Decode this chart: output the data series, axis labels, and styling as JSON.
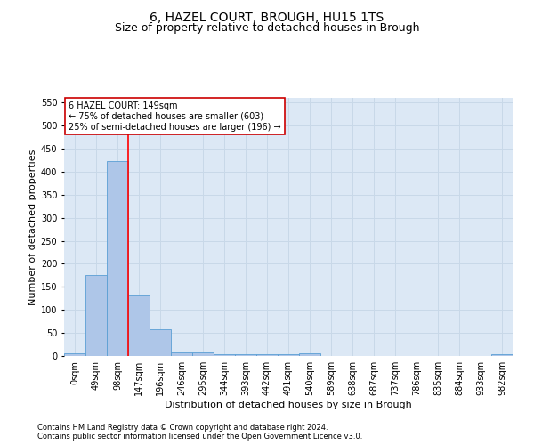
{
  "title": "6, HAZEL COURT, BROUGH, HU15 1TS",
  "subtitle": "Size of property relative to detached houses in Brough",
  "xlabel": "Distribution of detached houses by size in Brough",
  "ylabel": "Number of detached properties",
  "bin_labels": [
    "0sqm",
    "49sqm",
    "98sqm",
    "147sqm",
    "196sqm",
    "246sqm",
    "295sqm",
    "344sqm",
    "393sqm",
    "442sqm",
    "491sqm",
    "540sqm",
    "589sqm",
    "638sqm",
    "687sqm",
    "737sqm",
    "786sqm",
    "835sqm",
    "884sqm",
    "933sqm",
    "982sqm"
  ],
  "bar_values": [
    5,
    175,
    422,
    132,
    58,
    8,
    7,
    4,
    3,
    3,
    3,
    5,
    0,
    0,
    0,
    0,
    0,
    0,
    0,
    0,
    4
  ],
  "bar_color": "#aec6e8",
  "bar_edge_color": "#5a9fd4",
  "grid_color": "#c8d8e8",
  "bg_color": "#dce8f5",
  "red_line_x": 2.5,
  "annotation_line1": "6 HAZEL COURT: 149sqm",
  "annotation_line2": "← 75% of detached houses are smaller (603)",
  "annotation_line3": "25% of semi-detached houses are larger (196) →",
  "annotation_box_color": "#ffffff",
  "annotation_border_color": "#cc0000",
  "ylim": [
    0,
    560
  ],
  "yticks": [
    0,
    50,
    100,
    150,
    200,
    250,
    300,
    350,
    400,
    450,
    500,
    550
  ],
  "footer1": "Contains HM Land Registry data © Crown copyright and database right 2024.",
  "footer2": "Contains public sector information licensed under the Open Government Licence v3.0.",
  "title_fontsize": 10,
  "subtitle_fontsize": 9,
  "xlabel_fontsize": 8,
  "ylabel_fontsize": 8,
  "tick_fontsize": 7,
  "annotation_fontsize": 7,
  "footer_fontsize": 6
}
